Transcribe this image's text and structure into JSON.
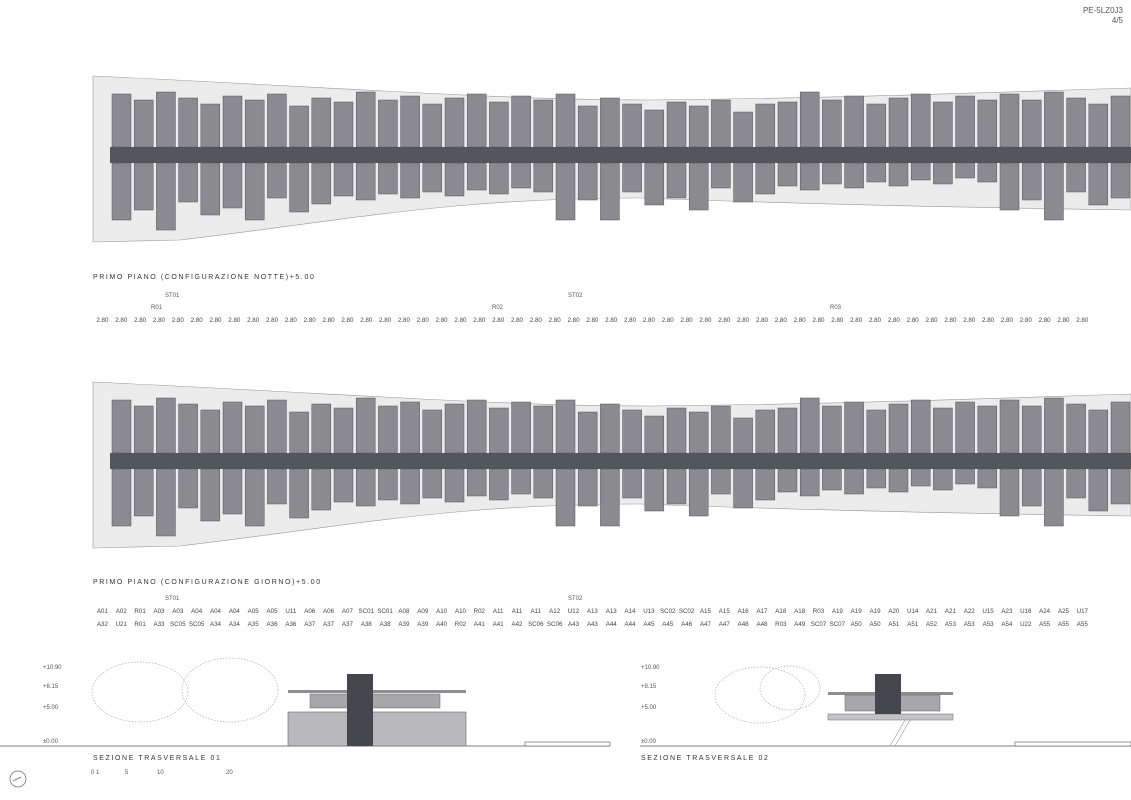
{
  "sheet": {
    "code": "PE-5LZ0J3",
    "page": "4/5"
  },
  "plans": {
    "night_title": "PRIMO PIANO (CONFIGURAZIONE NOTTE)+5.00",
    "day_title": "PRIMO PIANO (CONFIGURAZIONE GIORNO)+5.00"
  },
  "night_markers": {
    "st01": "ST01",
    "st02": "ST02",
    "r01": "R01",
    "r02": "R02",
    "r03": "R03"
  },
  "night_row": [
    "2.80",
    "2.80",
    "2.80",
    "2.80",
    "2.80",
    "2.80",
    "2.80",
    "2.80",
    "2.80",
    "2.80",
    "2.80",
    "2.80",
    "2.80",
    "2.80",
    "2.80",
    "2.80",
    "2.80",
    "2.80",
    "2.80",
    "2.80",
    "2.80",
    "2.80",
    "2.80",
    "2.80",
    "2.80",
    "2.80",
    "2.80",
    "2.80",
    "2.80",
    "2.80",
    "2.80",
    "2.80",
    "2.80",
    "2.80",
    "2.80",
    "2.80",
    "2.80",
    "2.80",
    "2.80",
    "2.80",
    "2.80",
    "2.80",
    "2.80",
    "2.80",
    "2.80",
    "2.80",
    "2.80",
    "2.80",
    "2.80",
    "2.80",
    "2.80",
    "2.80",
    "2.80"
  ],
  "day_markers": {
    "st01": "ST01",
    "st02": "ST02"
  },
  "day_row1": [
    "A01",
    "A02",
    "R01",
    "A03",
    "A03",
    "A04",
    "A04",
    "A04",
    "A05",
    "A05",
    "U11",
    "A06",
    "A06",
    "A07",
    "SC01",
    "SC01",
    "A08",
    "A09",
    "A10",
    "A10",
    "R02",
    "A11",
    "A11",
    "A11",
    "A12",
    "U12",
    "A13",
    "A13",
    "A14",
    "U13",
    "SC02",
    "SC02",
    "A15",
    "A15",
    "A16",
    "A17",
    "A18",
    "A18",
    "R03",
    "A19",
    "A19",
    "A19",
    "A20",
    "U14",
    "A21",
    "A21",
    "A22",
    "U15",
    "A23",
    "U16",
    "A24",
    "A25",
    "U17"
  ],
  "day_row2": [
    "A32",
    "U21",
    "R01",
    "A33",
    "SC05",
    "SC05",
    "A34",
    "A34",
    "A35",
    "A36",
    "A36",
    "A37",
    "A37",
    "A37",
    "A38",
    "A38",
    "A39",
    "A39",
    "A40",
    "R02",
    "A41",
    "A41",
    "A42",
    "SC06",
    "SC06",
    "A43",
    "A43",
    "A44",
    "A44",
    "A45",
    "A45",
    "A46",
    "A47",
    "A47",
    "A48",
    "A48",
    "R03",
    "A49",
    "SC07",
    "SC07",
    "A50",
    "A50",
    "A51",
    "A51",
    "A52",
    "A53",
    "A53",
    "A53",
    "A54",
    "U22",
    "A55",
    "A55",
    "A55"
  ],
  "sections": {
    "s1_title": "SEZIONE TRASVERSALE 01",
    "s2_title": "SEZIONE TRASVERSALE 02",
    "levels": [
      "+10.90",
      "+8.15",
      "+5.00",
      "±0.00"
    ]
  },
  "scale_bar": {
    "ticks": [
      "0 1",
      "5",
      "10",
      "20"
    ]
  }
}
